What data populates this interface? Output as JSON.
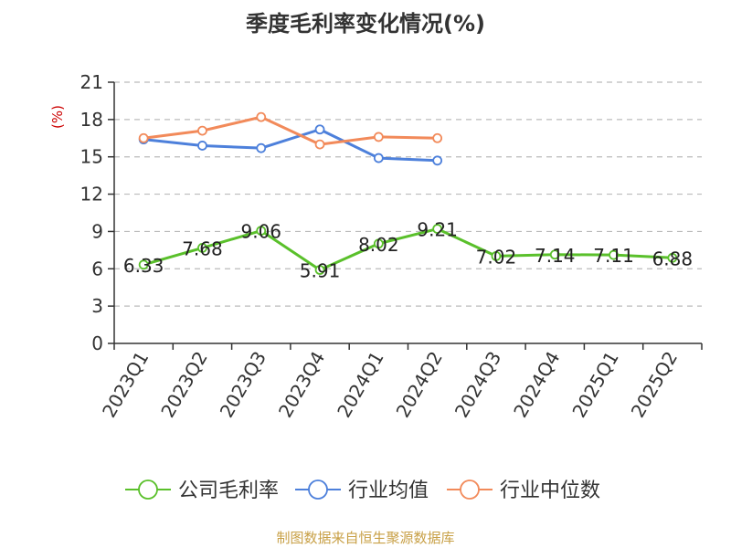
{
  "source": "制图数据来自恒生聚源数据库",
  "colors": {
    "axis": "#333333",
    "grid": "#bbbbbb",
    "unit": "#cc0000"
  },
  "chart_data": {
    "type": "line",
    "title": "季度毛利率变化情况(%)",
    "ylabel": "(%)",
    "ylim": [
      0,
      21
    ],
    "yticks": [
      0,
      3,
      6,
      9,
      12,
      15,
      18,
      21
    ],
    "grid": true,
    "legend_position": "bottom",
    "categories": [
      "2023Q1",
      "2023Q2",
      "2023Q3",
      "2023Q4",
      "2024Q1",
      "2024Q2",
      "2024Q3",
      "2024Q4",
      "2025Q1",
      "2025Q2"
    ],
    "series": [
      {
        "name": "公司毛利率",
        "color": "#5ac02b",
        "show_labels": true,
        "values": [
          6.33,
          7.68,
          9.06,
          5.91,
          8.02,
          9.21,
          7.02,
          7.14,
          7.11,
          6.88
        ]
      },
      {
        "name": "行业均值",
        "color": "#4d80db",
        "show_labels": false,
        "values": [
          16.4,
          15.9,
          15.7,
          17.2,
          14.9,
          14.7,
          null,
          null,
          null,
          null
        ]
      },
      {
        "name": "行业中位数",
        "color": "#f28a5a",
        "show_labels": false,
        "values": [
          16.5,
          17.1,
          18.2,
          16.0,
          16.6,
          16.5,
          null,
          null,
          null,
          null
        ]
      }
    ]
  }
}
